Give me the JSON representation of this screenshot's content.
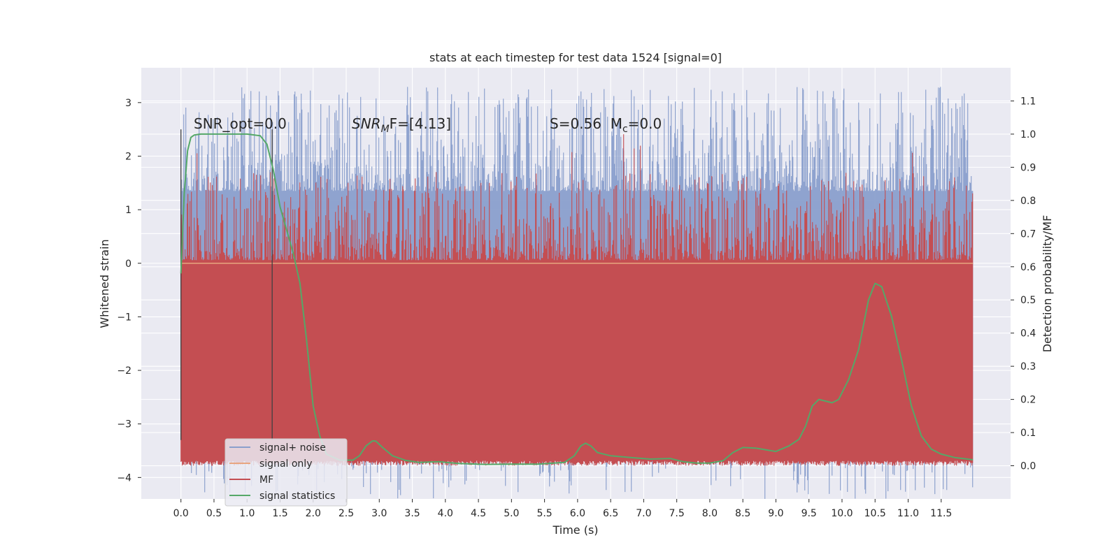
{
  "chart_data": {
    "type": "line",
    "title": "stats at each timestep for test data 1524 [signal=0]",
    "xlabel": "Time (s)",
    "ylabel": "Whitened strain",
    "y2label": "Detection probability/MF",
    "xlim": [
      -0.6,
      12.55
    ],
    "ylim": [
      -4.4,
      3.65
    ],
    "y2lim": [
      -0.1,
      1.2
    ],
    "xticks": [
      0.0,
      0.5,
      1.0,
      1.5,
      2.0,
      2.5,
      3.0,
      3.5,
      4.0,
      4.5,
      5.0,
      5.5,
      6.0,
      6.5,
      7.0,
      7.5,
      8.0,
      8.5,
      9.0,
      9.5,
      10.0,
      10.5,
      11.0,
      11.5
    ],
    "xtick_labels": [
      "0.0",
      "0.5",
      "1.0",
      "1.5",
      "2.0",
      "2.5",
      "3.0",
      "3.5",
      "4.0",
      "4.5",
      "5.0",
      "5.5",
      "6.0",
      "6.5",
      "7.0",
      "7.5",
      "8.0",
      "8.5",
      "9.0",
      "9.5",
      "10.0",
      "10.5",
      "11.0",
      "11.5"
    ],
    "yticks": [
      3,
      2,
      1,
      0,
      -1,
      -2,
      -3,
      -4
    ],
    "ytick_labels": [
      "3",
      "2",
      "1",
      "0",
      "−1",
      "−2",
      "−3",
      "−4"
    ],
    "y2ticks": [
      1.1,
      1.0,
      0.9,
      0.8,
      0.7,
      0.6,
      0.5,
      0.4,
      0.3,
      0.2,
      0.1,
      0.0
    ],
    "y2tick_labels": [
      "1.1",
      "1.0",
      "0.9",
      "0.8",
      "0.7",
      "0.6",
      "0.5",
      "0.4",
      "0.3",
      "0.2",
      "0.1",
      "0.0"
    ],
    "grid": true,
    "legend_position": "lower-left",
    "noise_band": {
      "t_start": 0.0,
      "t_end": 11.98,
      "typical_min": -1.6,
      "typical_max": 1.35,
      "max": 3.3,
      "min": -4.1
    },
    "mf_band": {
      "typical_min": 0.0,
      "typical_max": 0.6,
      "max": 1.0
    },
    "vertical_lines": [
      {
        "x": 0.0,
        "ymin": -3.3,
        "ymax": 2.5
      },
      {
        "x": 1.38,
        "ymin": -3.3,
        "ymax": 2.5
      }
    ],
    "signal_statistics": {
      "t": [
        0.0,
        0.05,
        0.1,
        0.15,
        0.2,
        0.3,
        0.5,
        0.8,
        1.0,
        1.2,
        1.3,
        1.4,
        1.5,
        1.6,
        1.7,
        1.8,
        1.9,
        2.0,
        2.1,
        2.2,
        2.4,
        2.6,
        2.7,
        2.8,
        2.9,
        2.95,
        3.05,
        3.2,
        3.4,
        3.6,
        3.9,
        4.2,
        4.6,
        5.0,
        5.4,
        5.8,
        5.95,
        6.05,
        6.12,
        6.2,
        6.3,
        6.5,
        6.8,
        7.1,
        7.4,
        7.6,
        7.8,
        8.0,
        8.2,
        8.35,
        8.5,
        8.7,
        9.0,
        9.2,
        9.35,
        9.45,
        9.55,
        9.65,
        9.75,
        9.85,
        9.95,
        10.1,
        10.25,
        10.4,
        10.5,
        10.6,
        10.75,
        10.9,
        11.05,
        11.2,
        11.35,
        11.5,
        11.7,
        11.9,
        11.98
      ],
      "values": [
        0.58,
        0.82,
        0.95,
        0.99,
        0.997,
        1.0,
        1.0,
        1.0,
        1.0,
        0.995,
        0.97,
        0.89,
        0.78,
        0.71,
        0.64,
        0.55,
        0.38,
        0.18,
        0.09,
        0.035,
        0.017,
        0.017,
        0.03,
        0.06,
        0.075,
        0.074,
        0.055,
        0.03,
        0.016,
        0.01,
        0.012,
        0.007,
        0.004,
        0.005,
        0.005,
        0.01,
        0.03,
        0.06,
        0.068,
        0.06,
        0.04,
        0.03,
        0.025,
        0.02,
        0.022,
        0.012,
        0.008,
        0.008,
        0.015,
        0.04,
        0.055,
        0.053,
        0.043,
        0.06,
        0.08,
        0.12,
        0.18,
        0.2,
        0.195,
        0.19,
        0.2,
        0.26,
        0.35,
        0.5,
        0.55,
        0.54,
        0.45,
        0.32,
        0.18,
        0.09,
        0.05,
        0.035,
        0.025,
        0.02,
        0.018
      ]
    },
    "annotations": [
      {
        "type": "plain",
        "text": "SNR_opt=0.0"
      },
      {
        "type": "snrmf",
        "main": "SNR",
        "sub": "M",
        "rest": "F=[4.13]"
      },
      {
        "type": "mc",
        "text": "S=0.56  M",
        "sub": "c",
        "rest": "=0.0"
      }
    ],
    "series": [
      {
        "name": "signal+ noise",
        "color": "#8a9fcc"
      },
      {
        "name": "signal only",
        "color": "#dd8452"
      },
      {
        "name": "MF",
        "color": "#c44e52"
      },
      {
        "name": "signal statistics",
        "color": "#55a868"
      }
    ]
  },
  "colors": {
    "plot_bg": "#eaeaf2",
    "grid": "#ffffff",
    "noise": "#8a9fcc",
    "signal_only": "#e8a57f",
    "mf": "#c44e52",
    "stats": "#55a868",
    "vline": "#404040"
  }
}
